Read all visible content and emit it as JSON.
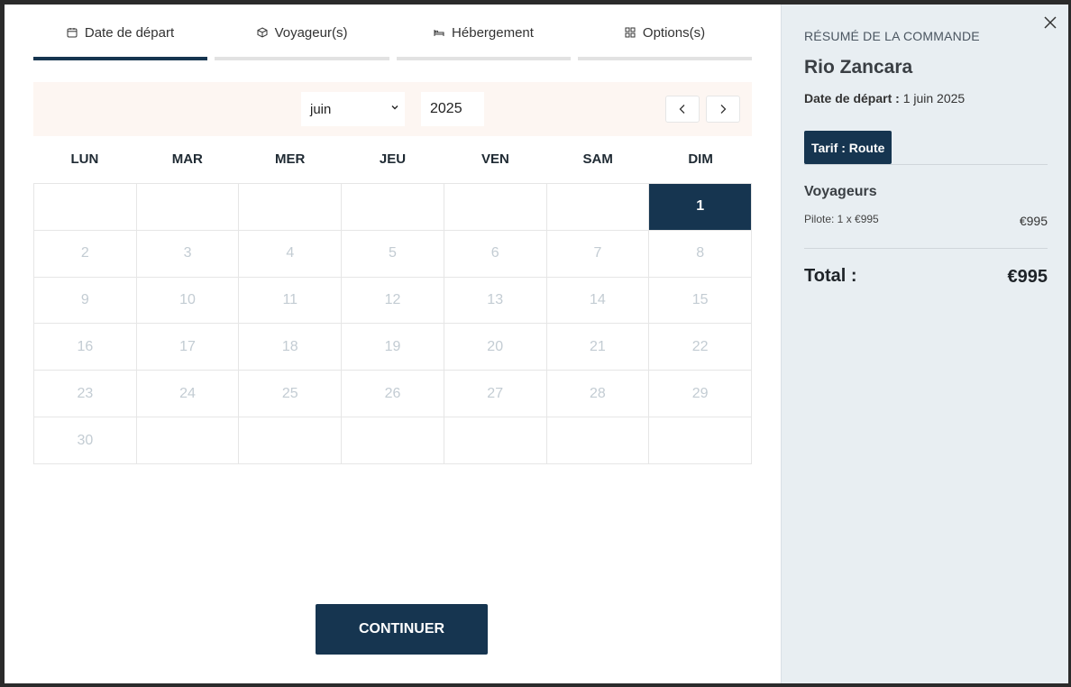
{
  "tabs": [
    {
      "label": "Date de départ",
      "icon": "calendar-icon",
      "active": true
    },
    {
      "label": "Voyageur(s)",
      "icon": "cube-icon",
      "active": false
    },
    {
      "label": "Hébergement",
      "icon": "bed-icon",
      "active": false
    },
    {
      "label": "Options(s)",
      "icon": "grid-icon",
      "active": false
    }
  ],
  "calendar": {
    "month": "juin",
    "year": "2025",
    "weekdays": [
      "LUN",
      "MAR",
      "MER",
      "JEU",
      "VEN",
      "SAM",
      "DIM"
    ],
    "days": [
      "",
      "",
      "",
      "",
      "",
      "",
      "1",
      "2",
      "3",
      "4",
      "5",
      "6",
      "7",
      "8",
      "9",
      "10",
      "11",
      "12",
      "13",
      "14",
      "15",
      "16",
      "17",
      "18",
      "19",
      "20",
      "21",
      "22",
      "23",
      "24",
      "25",
      "26",
      "27",
      "28",
      "29",
      "30",
      "",
      "",
      "",
      "",
      "",
      ""
    ],
    "selected_day": "1"
  },
  "continue_label": "CONTINUER",
  "summary": {
    "heading": "RÉSUMÉ DE LA COMMANDE",
    "trip_name": "Rio Zancara",
    "departure_label": "Date de départ :",
    "departure_value": "1 juin 2025",
    "tarif": "Tarif : Route",
    "travellers_heading": "Voyageurs",
    "line_label": "Pilote: 1 x €995",
    "line_price": "€995",
    "total_label": "Total :",
    "total_price": "€995"
  },
  "colors": {
    "accent": "#163550",
    "toolbar_bg": "#fdf6f2",
    "side_bg": "#e8eef2"
  }
}
